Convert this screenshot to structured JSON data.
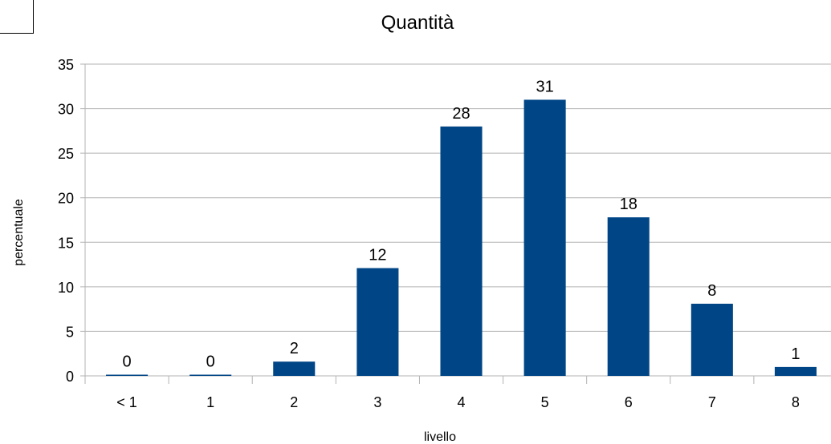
{
  "chart_data": {
    "type": "bar",
    "title": "Quantità",
    "xlabel": "livello",
    "ylabel": "percentuale",
    "categories": [
      "< 1",
      "1",
      "2",
      "3",
      "4",
      "5",
      "6",
      "7",
      "8"
    ],
    "values": [
      0,
      0,
      1.6,
      12.1,
      28,
      31,
      17.8,
      8.1,
      1
    ],
    "data_labels": [
      "0",
      "0",
      "2",
      "12",
      "28",
      "31",
      "18",
      "8",
      "1"
    ],
    "yticks": [
      "0",
      "5",
      "10",
      "15",
      "20",
      "25",
      "30",
      "35"
    ],
    "ylim": [
      0,
      35
    ],
    "grid": "horizontal",
    "legend": "none",
    "colors": {
      "bar": "#004586",
      "grid": "#b3b3b3",
      "axis": "#b3b3b3"
    }
  }
}
